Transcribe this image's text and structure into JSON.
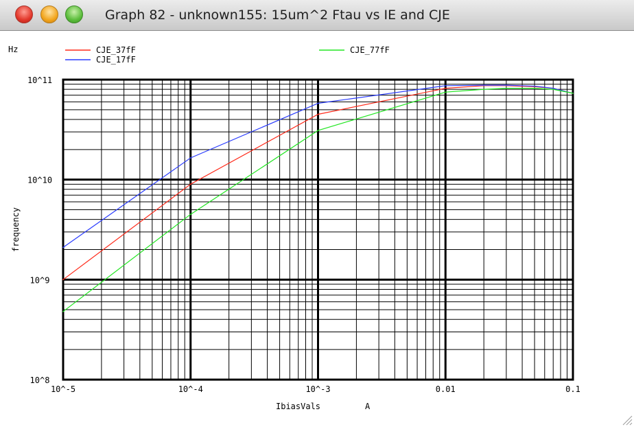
{
  "window": {
    "title": "Graph 82 - unknown155: 15um^2 Ftau vs IE and CJE",
    "buttons": [
      "close",
      "minimize",
      "zoom"
    ]
  },
  "colors": {
    "CJE_37fF": "#ff2a1a",
    "CJE_17fF": "#2a3cff",
    "CJE_77fF": "#22e622"
  },
  "chart_data": {
    "type": "line",
    "xscale": "log",
    "yscale": "log",
    "xlim": [
      1e-05,
      0.1
    ],
    "ylim": [
      100000000.0,
      100000000000.0
    ],
    "grid": true,
    "legend_position": "top",
    "ylabel_unit": "Hz",
    "ylabel": "frequency",
    "xlabel": "IbiasVals",
    "xlabel_unit": "A",
    "x_tick_labels": [
      "10^-5",
      "10^-4",
      "10^-3",
      "0.01",
      "0.1"
    ],
    "y_tick_labels": [
      "10^8",
      "10^9",
      "10^10",
      "10^11"
    ],
    "x": [
      1e-05,
      0.0001,
      0.001,
      0.01,
      0.02,
      0.03,
      0.05,
      0.07,
      0.1
    ],
    "series": [
      {
        "name": "CJE_37fF",
        "color": "#ff2a1a",
        "values": [
          1000000000.0,
          9000000000.0,
          45000000000.0,
          82000000000.0,
          87000000000.0,
          87000000000.0,
          85000000000.0,
          82000000000.0,
          73000000000.0
        ]
      },
      {
        "name": "CJE_17fF",
        "color": "#2a3cff",
        "values": [
          2100000000.0,
          16500000000.0,
          58000000000.0,
          87000000000.0,
          88000000000.0,
          88000000000.0,
          86000000000.0,
          82000000000.0,
          73000000000.0
        ]
      },
      {
        "name": "CJE_77fF",
        "color": "#22e622",
        "values": [
          480000000.0,
          4500000000.0,
          31000000000.0,
          75000000000.0,
          80000000000.0,
          82000000000.0,
          82000000000.0,
          80000000000.0,
          73000000000.0
        ]
      }
    ]
  }
}
